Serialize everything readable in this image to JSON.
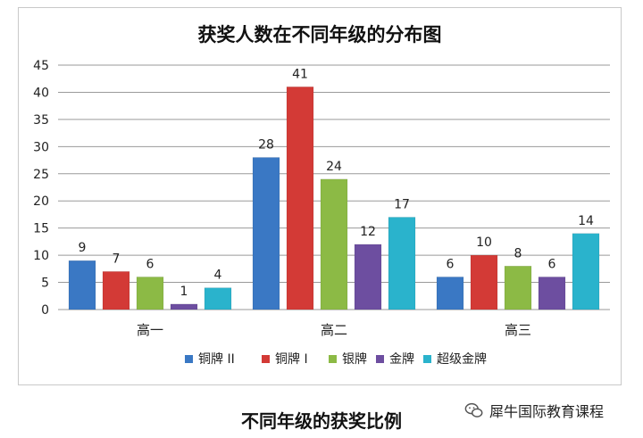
{
  "chart_data": {
    "type": "bar",
    "title": "获奖人数在不同年级的分布图",
    "categories": [
      "高一",
      "高二",
      "高三"
    ],
    "series": [
      {
        "name": "铜牌 II",
        "color": "#3a78c4",
        "values": [
          9,
          28,
          6
        ]
      },
      {
        "name": "铜牌 I",
        "color": "#d33a36",
        "values": [
          7,
          41,
          10
        ]
      },
      {
        "name": "银牌",
        "color": "#8cba45",
        "values": [
          6,
          24,
          8
        ]
      },
      {
        "name": "金牌",
        "color": "#6d4ea0",
        "values": [
          1,
          12,
          6
        ]
      },
      {
        "name": "超级金牌",
        "color": "#2ab3cc",
        "values": [
          4,
          17,
          14
        ]
      }
    ],
    "ylim": [
      0,
      45
    ],
    "yticks": [
      0,
      5,
      10,
      15,
      20,
      25,
      30,
      35,
      40,
      45
    ],
    "grid": true,
    "legend_position": "bottom"
  },
  "caption": "不同年级的获奖比例",
  "watermark": {
    "text": "犀牛国际教育课程",
    "icon": "wechat-icon"
  }
}
